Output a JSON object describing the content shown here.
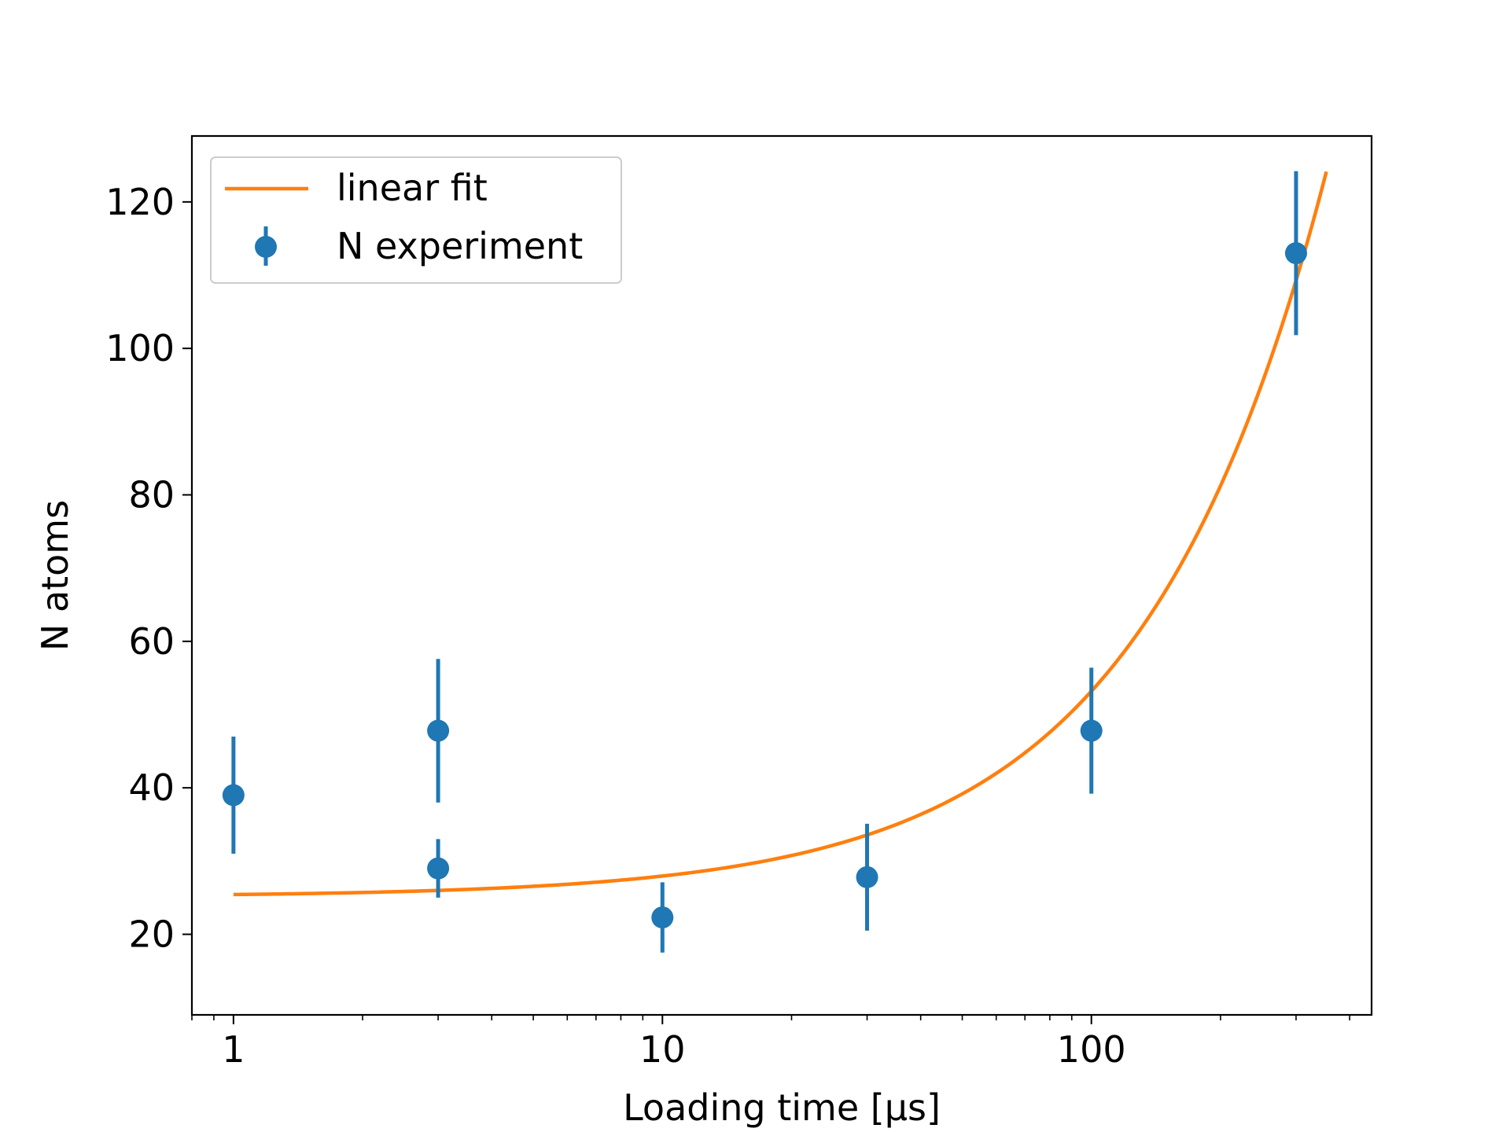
{
  "chart_data": {
    "type": "scatter",
    "title": "",
    "xlabel": "Loading time [μs]",
    "ylabel": "N atoms",
    "xscale": "log",
    "xlim": [
      0.8,
      450
    ],
    "ylim": [
      9,
      129
    ],
    "xticks": [
      {
        "value": 1,
        "label": "1"
      },
      {
        "value": 10,
        "label": "10"
      },
      {
        "value": 100,
        "label": "100"
      }
    ],
    "yticks": [
      {
        "value": 20,
        "label": "20"
      },
      {
        "value": 40,
        "label": "40"
      },
      {
        "value": 60,
        "label": "60"
      },
      {
        "value": 80,
        "label": "80"
      },
      {
        "value": 100,
        "label": "100"
      },
      {
        "value": 120,
        "label": "120"
      }
    ],
    "grid": false,
    "legend_position": "top-left",
    "series": [
      {
        "name": "N experiment",
        "kind": "errorbar",
        "color": "#1f77b4",
        "points": [
          {
            "x": 1,
            "y": 39,
            "err": 8
          },
          {
            "x": 3,
            "y": 47.8,
            "err": 9.8
          },
          {
            "x": 3,
            "y": 29,
            "err": 4
          },
          {
            "x": 10,
            "y": 22.3,
            "err": 4.8
          },
          {
            "x": 30,
            "y": 27.8,
            "err": 7.3
          },
          {
            "x": 100,
            "y": 47.8,
            "err": 8.6
          },
          {
            "x": 300,
            "y": 113,
            "err": 11.2
          }
        ]
      },
      {
        "name": "linear fit",
        "kind": "line",
        "color": "#ff7f0e",
        "model": {
          "form": "a + b*x",
          "a": 25.15,
          "b": 0.2804,
          "x_start": 1,
          "x_end": 353
        }
      }
    ]
  }
}
